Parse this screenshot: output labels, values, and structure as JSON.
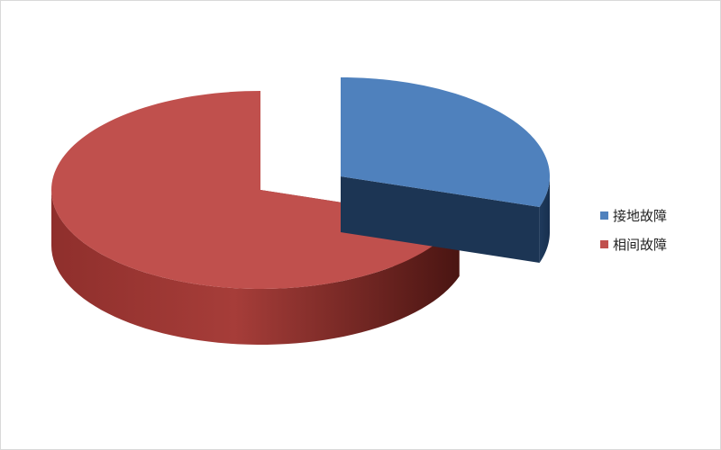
{
  "chart_data": {
    "type": "pie",
    "style": "3d-exploded",
    "categories": [
      "接地故障",
      "相间故障"
    ],
    "values": [
      30,
      70
    ],
    "colors": [
      "#4f81bd",
      "#c0504d"
    ],
    "legend_position": "right",
    "title": ""
  }
}
